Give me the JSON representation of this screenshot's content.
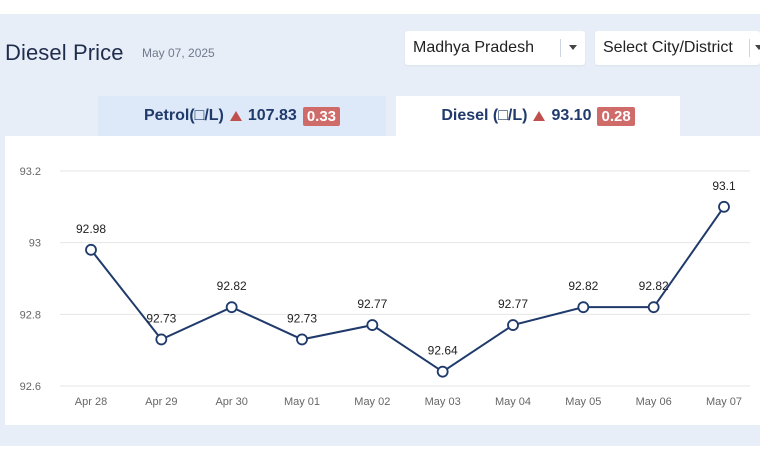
{
  "header": {
    "title": "Diesel Price",
    "date": "May 07, 2025"
  },
  "filters": {
    "state": "Madhya Pradesh",
    "city_placeholder": "Select City/District"
  },
  "tabs": [
    {
      "label": "Petrol(□/L)",
      "price": "107.83",
      "change": "0.33"
    },
    {
      "label": "Diesel (□/L)",
      "price": "93.10",
      "change": "0.28"
    }
  ],
  "active_tab": "Diesel",
  "colors": {
    "line": "#1f3a6b",
    "up_triangle": "#c0504d",
    "change_badge": "#cf6b68",
    "grid": "#e6e6e6"
  },
  "chart_data": {
    "type": "line",
    "categories": [
      "Apr 28",
      "Apr 29",
      "Apr 30",
      "May 01",
      "May 02",
      "May 03",
      "May 04",
      "May 05",
      "May 06",
      "May 07"
    ],
    "values": [
      92.98,
      92.73,
      92.82,
      92.73,
      92.77,
      92.64,
      92.77,
      92.82,
      92.82,
      93.1
    ],
    "data_labels": [
      "92.98",
      "92.73",
      "92.82",
      "92.73",
      "92.77",
      "92.64",
      "92.77",
      "92.82",
      "92.82",
      "93.1"
    ],
    "y_ticks": [
      "92.6",
      "92.8",
      "93",
      "93.2"
    ],
    "ylim": [
      92.6,
      93.2
    ],
    "grid": true,
    "xlabel": "",
    "ylabel": ""
  }
}
